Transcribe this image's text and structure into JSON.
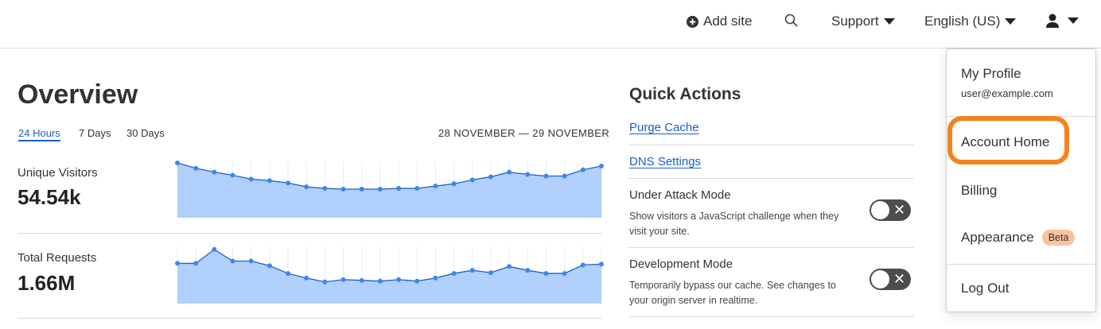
{
  "topbar": {
    "add_site": "Add site",
    "support": "Support",
    "language": "English (US)",
    "icons": [
      "plus-circle-icon",
      "search-icon",
      "user-icon"
    ]
  },
  "overview": {
    "title": "Overview",
    "ranges": [
      "24 Hours",
      "7 Days",
      "30 Days"
    ],
    "active_range": "24 Hours",
    "date_range": "28 NOVEMBER — 29 NOVEMBER"
  },
  "metrics": [
    {
      "label": "Unique Visitors",
      "value": "54.54k"
    },
    {
      "label": "Total Requests",
      "value": "1.66M"
    }
  ],
  "chart_data": [
    {
      "type": "area",
      "title": "Unique Visitors",
      "values": [
        71,
        64,
        59,
        55,
        50,
        48,
        45,
        40,
        38,
        37,
        37,
        37,
        38,
        38,
        41,
        44,
        49,
        53,
        59,
        56,
        54,
        54,
        62,
        67
      ],
      "color": "#3b87f0",
      "fill": "#b1d0fb"
    },
    {
      "type": "area",
      "title": "Total Requests",
      "values": [
        52,
        52,
        70,
        55,
        55,
        49,
        39,
        33,
        28,
        31,
        30,
        29,
        31,
        29,
        33,
        39,
        43,
        40,
        48,
        43,
        39,
        39,
        50,
        51
      ],
      "color": "#3b87f0",
      "fill": "#b1d0fb"
    }
  ],
  "quick_actions": {
    "title": "Quick Actions",
    "links": [
      "Purge Cache",
      "DNS Settings"
    ],
    "toggles": [
      {
        "title": "Under Attack Mode",
        "desc": "Show visitors a JavaScript challenge when they visit your site.",
        "on": false
      },
      {
        "title": "Development Mode",
        "desc": "Temporarily bypass our cache. See changes to your origin server in realtime.",
        "on": false
      }
    ]
  },
  "user_menu": {
    "profile": "My Profile",
    "email": "user@example.com",
    "account_home": "Account Home",
    "billing": "Billing",
    "appearance": "Appearance",
    "beta": "Beta",
    "logout": "Log Out",
    "highlight_color": "#f6821f"
  }
}
